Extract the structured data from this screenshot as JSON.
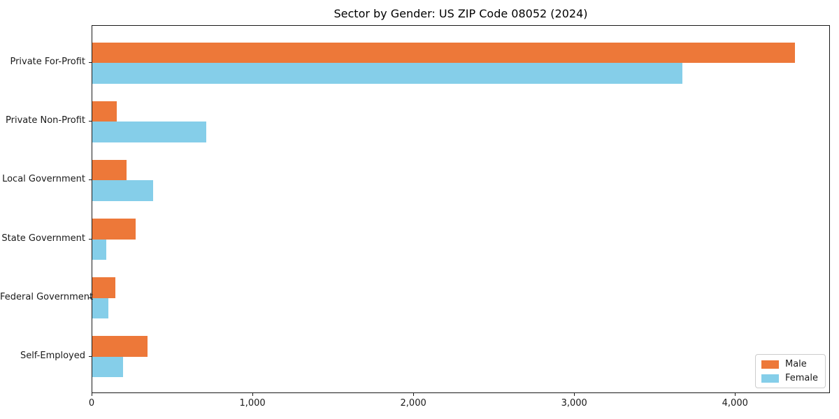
{
  "chart_data": {
    "type": "bar",
    "orientation": "horizontal",
    "title": "Sector by Gender: US ZIP Code 08052 (2024)",
    "categories": [
      "Private For-Profit",
      "Private Non-Profit",
      "Local Government",
      "State Government",
      "Federal Government",
      "Self-Employed"
    ],
    "series": [
      {
        "name": "Male",
        "color": "#ED7839",
        "values": [
          4370,
          150,
          215,
          270,
          145,
          345
        ]
      },
      {
        "name": "Female",
        "color": "#85CEE9",
        "values": [
          3670,
          710,
          380,
          85,
          100,
          190
        ]
      }
    ],
    "xlim": [
      0,
      4590
    ],
    "xticks": [
      0,
      1000,
      2000,
      3000,
      4000
    ],
    "xtick_labels": [
      "0",
      "1,000",
      "2,000",
      "3,000",
      "4,000"
    ],
    "xlabel": "",
    "ylabel": "",
    "grid": false,
    "legend": {
      "position": "lower right",
      "entries": [
        "Male",
        "Female"
      ]
    },
    "axis_color": "#1a1a1a",
    "background": "#ffffff"
  }
}
